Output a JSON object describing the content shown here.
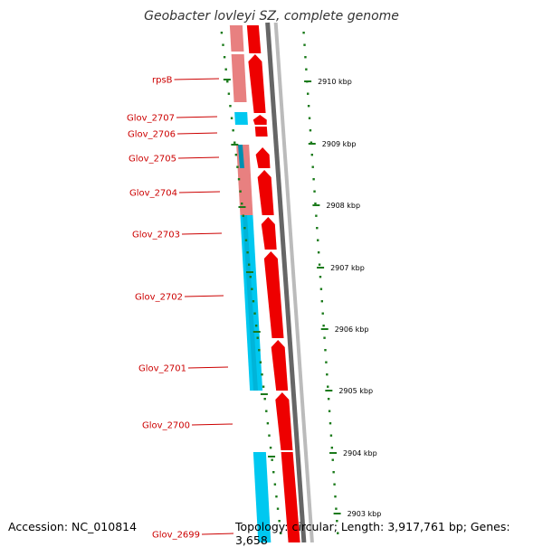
{
  "title": "Geobacter lovleyi SZ, complete genome",
  "accession": "Accession: NC_010814",
  "topology": "Topology: circular; Length: 3,917,761 bp; Genes: 3,658",
  "colors": {
    "label": "#cc0000",
    "cds_forward": "#ee0000",
    "cds_pale": "#e88080",
    "blast_cyan": "#00c8f0",
    "blast_dark": "#008fb0",
    "tick": "#1a7a1a",
    "backbone_dark": "#666666",
    "backbone_light": "#bbbbbb"
  },
  "genes": [
    {
      "label": "rpsB"
    },
    {
      "label": "Glov_2707"
    },
    {
      "label": "Glov_2706"
    },
    {
      "label": "Glov_2705"
    },
    {
      "label": "Glov_2704"
    },
    {
      "label": "Glov_2703"
    },
    {
      "label": "Glov_2702"
    },
    {
      "label": "Glov_2701"
    },
    {
      "label": "Glov_2700"
    },
    {
      "label": "Glov_2699"
    }
  ],
  "kbp_ticks": [
    {
      "label": "2910 kbp"
    },
    {
      "label": "2909 kbp"
    },
    {
      "label": "2908 kbp"
    },
    {
      "label": "2907 kbp"
    },
    {
      "label": "2906 kbp"
    },
    {
      "label": "2905 kbp"
    },
    {
      "label": "2904 kbp"
    },
    {
      "label": "2903 kbp"
    }
  ]
}
